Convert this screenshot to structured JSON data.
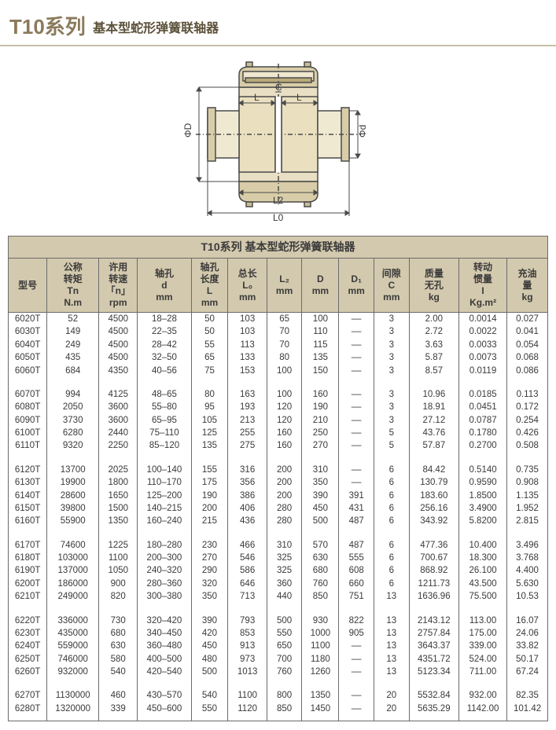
{
  "header": {
    "title_main": "T10系列",
    "title_sub": "基本型蛇形弹簧联轴器"
  },
  "diagram": {
    "labels": {
      "L": "L",
      "C": "C",
      "L2": "L2",
      "L0": "L0",
      "phiD": "ΦD",
      "phid": "Φd"
    },
    "colors": {
      "outline": "#4a4a4a",
      "fill_body": "#e8dfc4",
      "fill_shaft": "#f0e9d2",
      "fill_dark": "#d8cda8",
      "spring": "#b8aa7a"
    }
  },
  "table": {
    "banner": "T10系列 基本型蛇形弹簧联轴器",
    "columns": [
      {
        "line1": "",
        "line2": "",
        "line3": "型号",
        "line4": ""
      },
      {
        "line1": "公称",
        "line2": "转矩",
        "line3": "Tn",
        "line4": "N.m"
      },
      {
        "line1": "许用",
        "line2": "转速",
        "line3": "「n」",
        "line4": "rpm"
      },
      {
        "line1": "",
        "line2": "轴孔",
        "line3": "d",
        "line4": "mm"
      },
      {
        "line1": "轴孔",
        "line2": "长度",
        "line3": "L",
        "line4": "mm"
      },
      {
        "line1": "",
        "line2": "总长",
        "line3": "L₀",
        "line4": "mm"
      },
      {
        "line1": "",
        "line2": "",
        "line3": "L₂",
        "line4": "mm"
      },
      {
        "line1": "",
        "line2": "",
        "line3": "D",
        "line4": "mm"
      },
      {
        "line1": "",
        "line2": "",
        "line3": "D₁",
        "line4": "mm"
      },
      {
        "line1": "",
        "line2": "间隙",
        "line3": "C",
        "line4": "mm"
      },
      {
        "line1": "",
        "line2": "质量",
        "line3": "无孔",
        "line4": "kg"
      },
      {
        "line1": "转动",
        "line2": "惯量",
        "line3": "I",
        "line4": "Kg.m²"
      },
      {
        "line1": "",
        "line2": "充油",
        "line3": "量",
        "line4": "kg"
      }
    ],
    "groups": [
      [
        [
          "6020T",
          "52",
          "4500",
          "18–28",
          "50",
          "103",
          "65",
          "100",
          "––",
          "3",
          "2.00",
          "0.0014",
          "0.027"
        ],
        [
          "6030T",
          "149",
          "4500",
          "22–35",
          "50",
          "103",
          "70",
          "110",
          "––",
          "3",
          "2.72",
          "0.0022",
          "0.041"
        ],
        [
          "6040T",
          "249",
          "4500",
          "28–42",
          "55",
          "113",
          "70",
          "115",
          "––",
          "3",
          "3.63",
          "0.0033",
          "0.054"
        ],
        [
          "6050T",
          "435",
          "4500",
          "32–50",
          "65",
          "133",
          "80",
          "135",
          "––",
          "3",
          "5.87",
          "0.0073",
          "0.068"
        ],
        [
          "6060T",
          "684",
          "4350",
          "40–56",
          "75",
          "153",
          "100",
          "150",
          "––",
          "3",
          "8.57",
          "0.0119",
          "0.086"
        ]
      ],
      [
        [
          "6070T",
          "994",
          "4125",
          "48–65",
          "80",
          "163",
          "100",
          "160",
          "––",
          "3",
          "10.96",
          "0.0185",
          "0.113"
        ],
        [
          "6080T",
          "2050",
          "3600",
          "55–80",
          "95",
          "193",
          "120",
          "190",
          "––",
          "3",
          "18.91",
          "0.0451",
          "0.172"
        ],
        [
          "6090T",
          "3730",
          "3600",
          "65–95",
          "105",
          "213",
          "120",
          "210",
          "––",
          "3",
          "27.12",
          "0.0787",
          "0.254"
        ],
        [
          "6100T",
          "6280",
          "2440",
          "75–110",
          "125",
          "255",
          "160",
          "250",
          "––",
          "5",
          "43.76",
          "0.1780",
          "0.426"
        ],
        [
          "6110T",
          "9320",
          "2250",
          "85–120",
          "135",
          "275",
          "160",
          "270",
          "––",
          "5",
          "57.87",
          "0.2700",
          "0.508"
        ]
      ],
      [
        [
          "6120T",
          "13700",
          "2025",
          "100–140",
          "155",
          "316",
          "200",
          "310",
          "––",
          "6",
          "84.42",
          "0.5140",
          "0.735"
        ],
        [
          "6130T",
          "19900",
          "1800",
          "110–170",
          "175",
          "356",
          "200",
          "350",
          "––",
          "6",
          "130.79",
          "0.9590",
          "0.908"
        ],
        [
          "6140T",
          "28600",
          "1650",
          "125–200",
          "190",
          "386",
          "200",
          "390",
          "391",
          "6",
          "183.60",
          "1.8500",
          "1.135"
        ],
        [
          "6150T",
          "39800",
          "1500",
          "140–215",
          "200",
          "406",
          "280",
          "450",
          "431",
          "6",
          "256.16",
          "3.4900",
          "1.952"
        ],
        [
          "6160T",
          "55900",
          "1350",
          "160–240",
          "215",
          "436",
          "280",
          "500",
          "487",
          "6",
          "343.92",
          "5.8200",
          "2.815"
        ]
      ],
      [
        [
          "6170T",
          "74600",
          "1225",
          "180–280",
          "230",
          "466",
          "310",
          "570",
          "487",
          "6",
          "477.36",
          "10.400",
          "3.496"
        ],
        [
          "6180T",
          "103000",
          "1100",
          "200–300",
          "270",
          "546",
          "325",
          "630",
          "555",
          "6",
          "700.67",
          "18.300",
          "3.768"
        ],
        [
          "6190T",
          "137000",
          "1050",
          "240–320",
          "290",
          "586",
          "325",
          "680",
          "608",
          "6",
          "868.92",
          "26.100",
          "4.400"
        ],
        [
          "6200T",
          "186000",
          "900",
          "280–360",
          "320",
          "646",
          "360",
          "760",
          "660",
          "6",
          "1211.73",
          "43.500",
          "5.630"
        ],
        [
          "6210T",
          "249000",
          "820",
          "300–380",
          "350",
          "713",
          "440",
          "850",
          "751",
          "13",
          "1636.96",
          "75.500",
          "10.53"
        ]
      ],
      [
        [
          "6220T",
          "336000",
          "730",
          "320–420",
          "390",
          "793",
          "500",
          "930",
          "822",
          "13",
          "2143.12",
          "113.00",
          "16.07"
        ],
        [
          "6230T",
          "435000",
          "680",
          "340–450",
          "420",
          "853",
          "550",
          "1000",
          "905",
          "13",
          "2757.84",
          "175.00",
          "24.06"
        ],
        [
          "6240T",
          "559000",
          "630",
          "360–480",
          "450",
          "913",
          "650",
          "1100",
          "––",
          "13",
          "3643.37",
          "339.00",
          "33.82"
        ],
        [
          "6250T",
          "746000",
          "580",
          "400–500",
          "480",
          "973",
          "700",
          "1180",
          "––",
          "13",
          "4351.72",
          "524.00",
          "50.17"
        ],
        [
          "6260T",
          "932000",
          "540",
          "420–540",
          "500",
          "1013",
          "760",
          "1260",
          "––",
          "13",
          "5123.34",
          "711.00",
          "67.24"
        ]
      ],
      [
        [
          "6270T",
          "1130000",
          "460",
          "430–570",
          "540",
          "1100",
          "800",
          "1350",
          "––",
          "20",
          "5532.84",
          "932.00",
          "82.35"
        ],
        [
          "6280T",
          "1320000",
          "339",
          "450–600",
          "550",
          "1120",
          "850",
          "1450",
          "––",
          "20",
          "5635.29",
          "1142.00",
          "101.42"
        ]
      ]
    ]
  }
}
